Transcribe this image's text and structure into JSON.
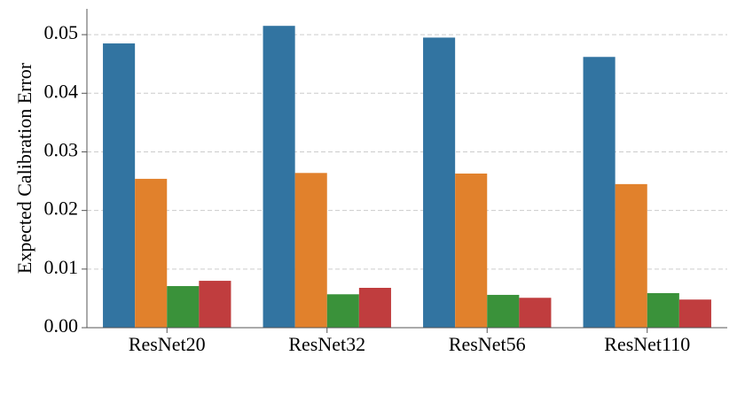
{
  "chart_data": {
    "type": "bar",
    "y_label": "Expected Calibration Error",
    "categories": [
      "ResNet20",
      "ResNet32",
      "ResNet56",
      "ResNet110"
    ],
    "series": [
      {
        "color": "#3274a1",
        "values": [
          0.0485,
          0.0515,
          0.0495,
          0.0462
        ]
      },
      {
        "color": "#e1812c",
        "values": [
          0.0254,
          0.0264,
          0.0263,
          0.0245
        ]
      },
      {
        "color": "#3a923a",
        "values": [
          0.0071,
          0.0057,
          0.0056,
          0.0059
        ]
      },
      {
        "color": "#c03d3e",
        "values": [
          0.008,
          0.0068,
          0.0051,
          0.0048
        ]
      }
    ],
    "ylim": [
      0,
      0.0544
    ],
    "yticks": [
      {
        "value": 0,
        "label": "0.00"
      },
      {
        "value": 0.01,
        "label": "0.01"
      },
      {
        "value": 0.02,
        "label": "0.02"
      },
      {
        "value": 0.03,
        "label": "0.03"
      },
      {
        "value": 0.04,
        "label": "0.04"
      },
      {
        "value": 0.05,
        "label": "0.05"
      }
    ],
    "grid": true
  }
}
